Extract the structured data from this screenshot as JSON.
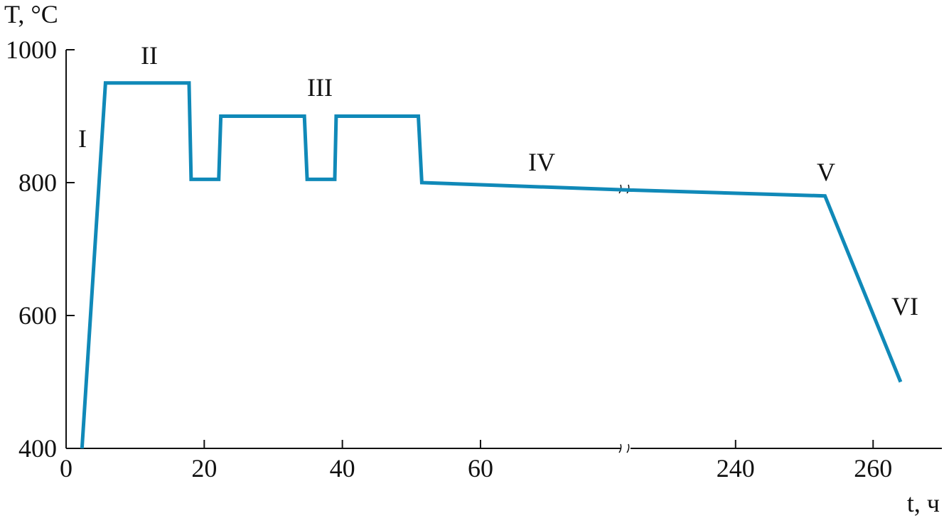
{
  "chart_data": {
    "type": "line",
    "x_label": "t, ч",
    "y_label": "T, °C",
    "x_segments": [
      {
        "xlim": [
          0,
          81
        ],
        "xticks": [
          0,
          20,
          40,
          60
        ]
      },
      {
        "xlim": [
          224,
          270
        ],
        "xticks": [
          240,
          260
        ]
      }
    ],
    "ylim": [
      400,
      1000
    ],
    "yticks": [
      400,
      600,
      800,
      1000
    ],
    "annotations": [
      "I",
      "II",
      "III",
      "IV",
      "V",
      "VI"
    ],
    "series": [
      {
        "color": "#1089b8",
        "x": [
          2.3,
          5.7,
          17.8,
          18.1,
          22.1,
          22.4,
          34.5,
          34.9,
          38.9,
          39.1,
          51.0,
          51.5,
          81,
          224,
          253,
          264
        ],
        "values": [
          400,
          950,
          950,
          805,
          805,
          900,
          900,
          805,
          805,
          900,
          900,
          800,
          789,
          789,
          780,
          500
        ]
      }
    ]
  }
}
